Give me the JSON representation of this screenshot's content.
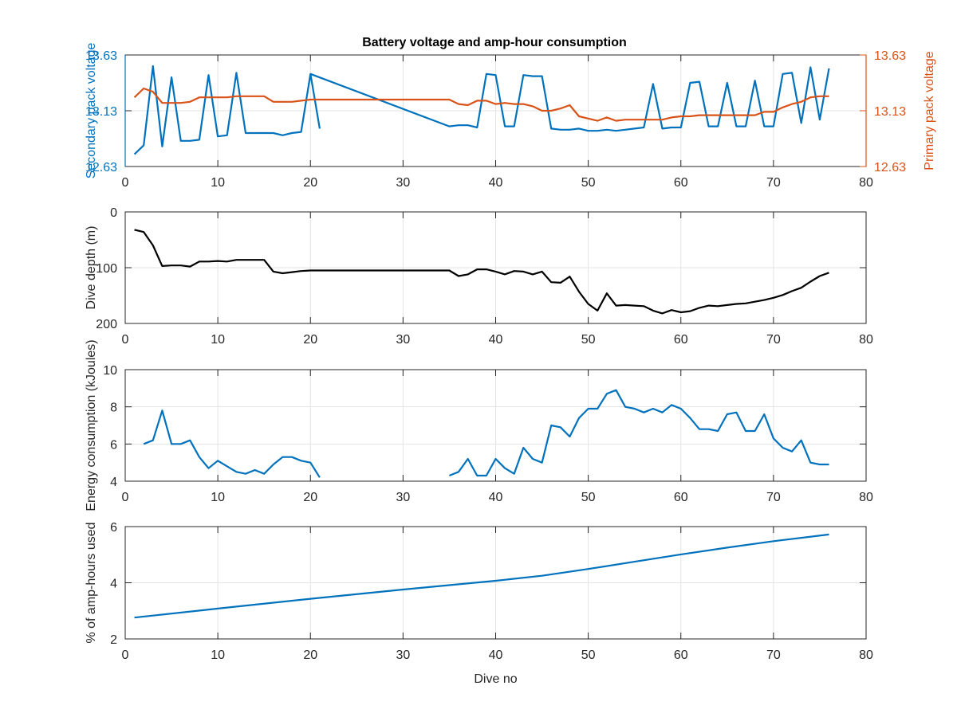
{
  "figure": {
    "title": "Battery voltage and amp-hour consumption"
  },
  "chart_data": [
    {
      "type": "line",
      "title": "Battery voltage and amp-hour consumption",
      "xlabel": "",
      "ylabel": "Secondary pack voltage",
      "y2label": "Primary pack voltage",
      "xlim": [
        0,
        80
      ],
      "xticks": [
        0,
        10,
        20,
        30,
        40,
        50,
        60,
        70,
        80
      ],
      "ylim": [
        12.63,
        13.63
      ],
      "yticks": [
        12.63,
        13.13,
        13.63
      ],
      "ytick_labels": [
        "12.63",
        "13.13",
        "13.63"
      ],
      "y2lim": [
        12.63,
        13.63
      ],
      "y2ticks": [
        12.63,
        13.13,
        13.63
      ],
      "y2tick_labels": [
        "12.63",
        "13.13",
        "13.63"
      ],
      "grid": true,
      "left_color": "#0072bd",
      "right_color": "#d95319",
      "series": [
        {
          "axis": "left",
          "color": "#0072bd",
          "segments": [
            {
              "x": [
                1,
                2,
                3,
                4,
                5,
                6,
                7,
                8,
                9,
                10,
                11,
                12,
                13,
                14,
                15,
                16,
                17,
                18,
                19,
                20,
                21
              ],
              "y": [
                12.74,
                12.82,
                13.53,
                12.81,
                13.43,
                12.86,
                12.86,
                12.87,
                13.45,
                12.9,
                12.91,
                13.47,
                12.93,
                12.93,
                12.93,
                12.93,
                12.91,
                12.93,
                12.94,
                13.46,
                12.97
              ]
            },
            {
              "x": [
                20,
                35,
                36,
                37,
                38,
                39,
                40,
                41,
                42,
                43,
                44,
                45,
                46,
                47,
                48,
                49,
                50,
                51,
                52,
                53,
                54,
                55,
                56,
                57,
                58,
                59,
                60,
                61,
                62,
                63,
                64,
                65,
                66,
                67,
                68,
                69,
                70,
                71,
                72,
                73,
                74,
                75,
                76
              ],
              "y": [
                13.46,
                12.99,
                13.0,
                13.0,
                12.98,
                13.46,
                13.45,
                12.99,
                12.99,
                13.45,
                13.44,
                13.44,
                12.97,
                12.96,
                12.96,
                12.97,
                12.95,
                12.95,
                12.96,
                12.95,
                12.96,
                12.97,
                12.98,
                13.37,
                12.97,
                12.98,
                12.98,
                13.38,
                13.39,
                12.99,
                12.99,
                13.38,
                12.99,
                12.99,
                13.4,
                12.99,
                12.99,
                13.46,
                13.47,
                13.02,
                13.52,
                13.05,
                13.51
              ]
            }
          ]
        },
        {
          "axis": "right",
          "color": "#d95319",
          "segments": [
            {
              "x": [
                1,
                2,
                3,
                4,
                5,
                6,
                7,
                8,
                9,
                10,
                11,
                12,
                13,
                14,
                15,
                16,
                17,
                18,
                19,
                20,
                21,
                25,
                30,
                35,
                36,
                37,
                38,
                39,
                40,
                41,
                42,
                43,
                44,
                45,
                46,
                47,
                48,
                49,
                50,
                51,
                52,
                53,
                54,
                55,
                56,
                57,
                58,
                59,
                60,
                61,
                62,
                63,
                64,
                65,
                66,
                67,
                68,
                69,
                70,
                71,
                72,
                73,
                74,
                75,
                76
              ],
              "y": [
                13.25,
                13.33,
                13.3,
                13.2,
                13.2,
                13.2,
                13.21,
                13.25,
                13.25,
                13.25,
                13.25,
                13.26,
                13.26,
                13.26,
                13.26,
                13.21,
                13.21,
                13.21,
                13.22,
                13.23,
                13.23,
                13.23,
                13.23,
                13.23,
                13.19,
                13.18,
                13.22,
                13.22,
                13.19,
                13.2,
                13.19,
                13.19,
                13.17,
                13.13,
                13.13,
                13.15,
                13.18,
                13.08,
                13.06,
                13.04,
                13.07,
                13.04,
                13.05,
                13.05,
                13.05,
                13.05,
                13.05,
                13.07,
                13.08,
                13.08,
                13.09,
                13.09,
                13.09,
                13.09,
                13.09,
                13.09,
                13.09,
                13.12,
                13.12,
                13.16,
                13.19,
                13.21,
                13.25,
                13.26,
                13.26
              ]
            }
          ]
        }
      ]
    },
    {
      "type": "line",
      "title": "",
      "xlabel": "",
      "ylabel": "Dive depth (m)",
      "xlim": [
        0,
        80
      ],
      "xticks": [
        0,
        10,
        20,
        30,
        40,
        50,
        60,
        70,
        80
      ],
      "ylim": [
        0,
        200
      ],
      "y_reversed": true,
      "yticks": [
        0,
        100,
        200
      ],
      "ytick_labels": [
        "0",
        "100",
        "200"
      ],
      "grid": true,
      "series": [
        {
          "color": "#000000",
          "segments": [
            {
              "x": [
                1,
                2,
                3,
                4,
                5,
                6,
                7,
                8,
                9,
                10,
                11,
                12,
                13,
                14,
                15,
                16,
                17,
                18,
                19,
                20,
                21,
                22
              ],
              "y": [
                32,
                36,
                60,
                97,
                96,
                96,
                98,
                89,
                89,
                88,
                89,
                86,
                86,
                86,
                86,
                107,
                110,
                108,
                106,
                105,
                105,
                105
              ]
            },
            {
              "x": [
                22,
                30,
                35,
                36,
                37,
                38,
                39,
                40,
                41,
                42,
                43,
                44,
                45,
                46,
                47,
                48,
                49,
                50,
                51,
                52,
                53,
                54,
                55,
                56,
                57,
                58,
                59,
                60,
                61,
                62,
                63,
                64,
                65,
                66,
                67,
                68,
                69,
                70,
                71,
                72,
                73,
                74,
                75,
                76
              ],
              "y": [
                105,
                105,
                105,
                115,
                112,
                103,
                103,
                107,
                112,
                106,
                107,
                112,
                107,
                126,
                127,
                116,
                143,
                165,
                177,
                146,
                168,
                167,
                168,
                169,
                177,
                182,
                176,
                180,
                178,
                172,
                168,
                169,
                167,
                165,
                164,
                161,
                158,
                154,
                149,
                142,
                136,
                125,
                115,
                109
              ]
            }
          ]
        }
      ]
    },
    {
      "type": "line",
      "title": "",
      "xlabel": "",
      "ylabel": "Energy consumption (kJoules)",
      "xlim": [
        0,
        80
      ],
      "xticks": [
        0,
        10,
        20,
        30,
        40,
        50,
        60,
        70,
        80
      ],
      "ylim": [
        4,
        10
      ],
      "yticks": [
        4,
        6,
        8,
        10
      ],
      "ytick_labels": [
        "4",
        "6",
        "8",
        "10"
      ],
      "grid": true,
      "series": [
        {
          "color": "#0072bd",
          "segments": [
            {
              "x": [
                2,
                3,
                4,
                5,
                6,
                7,
                8,
                9,
                10,
                11,
                12,
                13,
                14,
                15,
                16,
                17,
                18,
                19,
                20,
                21
              ],
              "y": [
                6.0,
                6.2,
                7.8,
                6.0,
                6.0,
                6.2,
                5.3,
                4.7,
                5.1,
                4.8,
                4.5,
                4.4,
                4.6,
                4.4,
                4.9,
                5.3,
                5.3,
                5.1,
                5.0,
                4.2
              ]
            },
            {
              "x": [
                35,
                36,
                37,
                38,
                39,
                40,
                41,
                42,
                43,
                44,
                45,
                46,
                47,
                48,
                49,
                50,
                51,
                52,
                53,
                54,
                55,
                56,
                57,
                58,
                59,
                60,
                61,
                62,
                63,
                64,
                65,
                66,
                67,
                68,
                69,
                70,
                71,
                72,
                73,
                74,
                75,
                76
              ],
              "y": [
                4.3,
                4.5,
                5.2,
                4.3,
                4.3,
                5.2,
                4.7,
                4.4,
                5.8,
                5.2,
                5.0,
                7.0,
                6.9,
                6.4,
                7.4,
                7.9,
                7.9,
                8.7,
                8.9,
                8.0,
                7.9,
                7.7,
                7.9,
                7.7,
                8.1,
                7.9,
                7.4,
                6.8,
                6.8,
                6.7,
                7.6,
                7.7,
                6.7,
                6.7,
                7.6,
                6.3,
                5.8,
                5.6,
                6.2,
                5.0,
                4.9,
                4.9
              ]
            }
          ]
        }
      ]
    },
    {
      "type": "line",
      "title": "",
      "xlabel": "Dive no",
      "ylabel": "% of amp-hours used",
      "xlim": [
        0,
        80
      ],
      "xticks": [
        0,
        10,
        20,
        30,
        40,
        50,
        60,
        70,
        80
      ],
      "ylim": [
        2,
        6
      ],
      "yticks": [
        2,
        4,
        6
      ],
      "ytick_labels": [
        "2",
        "4",
        "6"
      ],
      "grid": true,
      "series": [
        {
          "color": "#0072bd",
          "segments": [
            {
              "x": [
                1,
                10,
                20,
                30,
                40,
                45,
                50,
                55,
                60,
                65,
                70,
                76
              ],
              "y": [
                2.76,
                3.08,
                3.43,
                3.76,
                4.07,
                4.25,
                4.49,
                4.75,
                5.01,
                5.25,
                5.48,
                5.72
              ]
            }
          ]
        }
      ]
    }
  ]
}
